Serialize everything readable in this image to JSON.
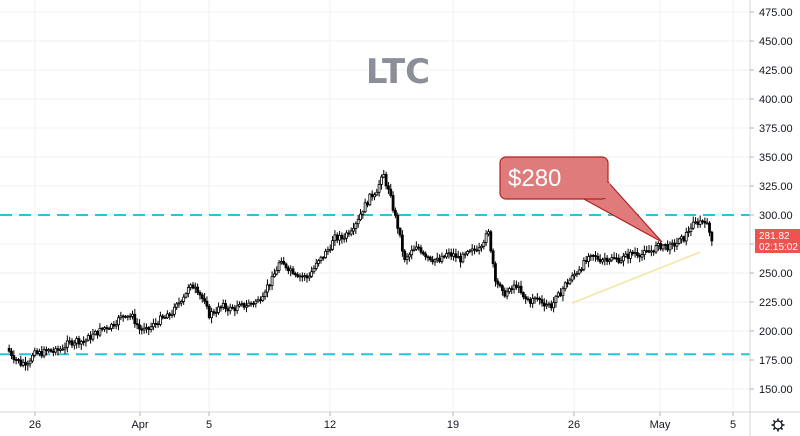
{
  "chart_data": {
    "type": "candlestick",
    "title": "LTC",
    "annotation": "$280",
    "y_ticks": [
      "475.00",
      "450.00",
      "425.00",
      "400.00",
      "375.00",
      "350.00",
      "325.00",
      "300.00",
      "275.00",
      "250.00",
      "225.00",
      "200.00",
      "175.00",
      "150.00"
    ],
    "y_tick_values": [
      475,
      450,
      425,
      400,
      375,
      350,
      325,
      300,
      275,
      250,
      225,
      200,
      175,
      150
    ],
    "x_ticks": [
      "26",
      "Apr",
      "5",
      "12",
      "19",
      "26",
      "May",
      "5"
    ],
    "ylim": [
      130,
      485
    ],
    "current_price": "281.82",
    "countdown": "02:15:02",
    "levels": [
      {
        "value": 300,
        "color": "#26c6da",
        "style": "dashed"
      },
      {
        "value": 180,
        "color": "#26c6da",
        "style": "dashed"
      }
    ],
    "trendline": {
      "from": 224,
      "to": 268,
      "color": "#f5e6a3"
    },
    "colors": {
      "up": "#26a69a",
      "down": "#ef5350",
      "candle": "#000000",
      "callout_fill": "#e07b7b",
      "callout_border": "#b22222",
      "price_tag": "#ef5350"
    },
    "price_path": [
      185,
      178,
      172,
      174,
      180,
      181,
      183,
      182,
      186,
      190,
      192,
      191,
      195,
      199,
      203,
      205,
      210,
      215,
      212,
      202,
      200,
      205,
      210,
      212,
      218,
      228,
      236,
      240,
      228,
      214,
      218,
      221,
      219,
      220,
      222,
      224,
      226,
      236,
      244,
      258,
      256,
      252,
      248,
      246,
      254,
      262,
      270,
      280,
      280,
      286,
      294,
      305,
      315,
      322,
      334,
      314,
      290,
      260,
      268,
      272,
      266,
      262,
      260,
      266,
      265,
      262,
      266,
      270,
      276,
      284,
      246,
      232,
      234,
      240,
      228,
      226,
      228,
      224,
      222,
      230,
      240,
      246,
      254,
      260,
      264,
      262,
      263,
      262,
      262,
      265,
      268,
      266,
      268,
      272,
      274,
      272,
      276,
      280,
      290,
      294,
      296,
      280
    ],
    "settings_label": "settings"
  }
}
